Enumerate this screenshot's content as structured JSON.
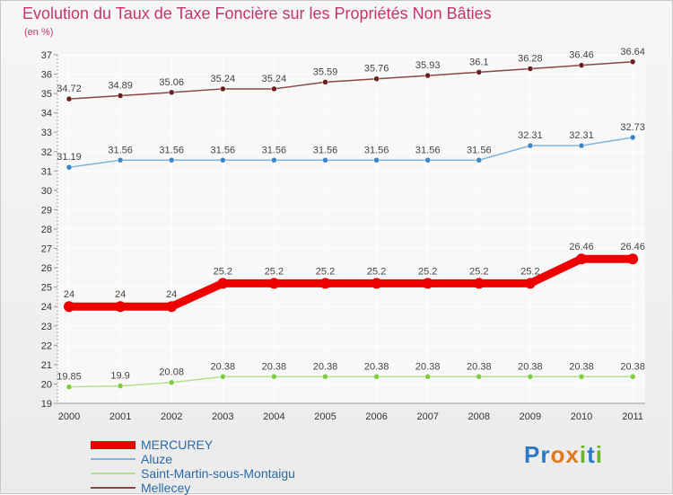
{
  "header": {
    "title": "Evolution du Taux de Taxe Foncière sur les Propriétés Non Bâties",
    "unit": "(en %)"
  },
  "logo": {
    "text": "Proxiti",
    "letters": [
      "P",
      "r",
      "o",
      "x",
      "i",
      "t",
      "i"
    ],
    "colors": [
      "#2b7bc8",
      "#2b7bc8",
      "#e07a1a",
      "#e07a1a",
      "#6ab42a",
      "#2b7bc8",
      "#6ab42a"
    ]
  },
  "chart_data": {
    "type": "line",
    "title": "Evolution du Taux de Taxe Foncière sur les Propriétés Non Bâties",
    "ylabel": "(en %)",
    "xlabel": "",
    "ylim": [
      19,
      37
    ],
    "yticks": [
      "19",
      "20",
      "21",
      "22",
      "23",
      "24",
      "25",
      "26",
      "27",
      "28",
      "29",
      "30",
      "31",
      "32",
      "33",
      "34",
      "35",
      "36",
      "37"
    ],
    "categories": [
      "2000",
      "2001",
      "2002",
      "2003",
      "2004",
      "2005",
      "2006",
      "2007",
      "2008",
      "2009",
      "2010",
      "2011"
    ],
    "series": [
      {
        "name": "MERCUREY",
        "color": "#ee0000",
        "width": 9,
        "values": [
          24,
          24,
          24,
          25.2,
          25.2,
          25.2,
          25.2,
          25.2,
          25.2,
          25.2,
          26.46,
          26.46
        ],
        "labels": [
          "24",
          "24",
          "24",
          "25.2",
          "25.2",
          "25.2",
          "25.2",
          "25.2",
          "25.2",
          "25.2",
          "26.46",
          "26.46"
        ]
      },
      {
        "name": "Aluze",
        "color": "#80b4dc",
        "dot": "#3d85c6",
        "width": 1.5,
        "values": [
          31.19,
          31.56,
          31.56,
          31.56,
          31.56,
          31.56,
          31.56,
          31.56,
          31.56,
          32.31,
          32.31,
          32.73
        ],
        "labels": [
          "31.19",
          "31.56",
          "31.56",
          "31.56",
          "31.56",
          "31.56",
          "31.56",
          "31.56",
          "31.56",
          "32.31",
          "32.31",
          "32.73"
        ]
      },
      {
        "name": "Saint-Martin-sous-Montaigu",
        "color": "#b4e08c",
        "dot": "#7ccf3c",
        "width": 1.5,
        "values": [
          19.85,
          19.9,
          20.08,
          20.38,
          20.38,
          20.38,
          20.38,
          20.38,
          20.38,
          20.38,
          20.38,
          20.38
        ],
        "labels": [
          "19.85",
          "19.9",
          "20.08",
          "20.38",
          "20.38",
          "20.38",
          "20.38",
          "20.38",
          "20.38",
          "20.38",
          "20.38",
          "20.38"
        ]
      },
      {
        "name": "Mellecey",
        "color": "#8c4646",
        "dot": "#6b1f1f",
        "width": 1.5,
        "values": [
          34.72,
          34.89,
          35.06,
          35.24,
          35.24,
          35.59,
          35.76,
          35.93,
          36.1,
          36.28,
          36.46,
          36.64
        ],
        "labels": [
          "34.72",
          "34.89",
          "35.06",
          "35.24",
          "35.24",
          "35.59",
          "35.76",
          "35.93",
          "36.1",
          "36.28",
          "36.46",
          "36.64"
        ]
      }
    ]
  }
}
